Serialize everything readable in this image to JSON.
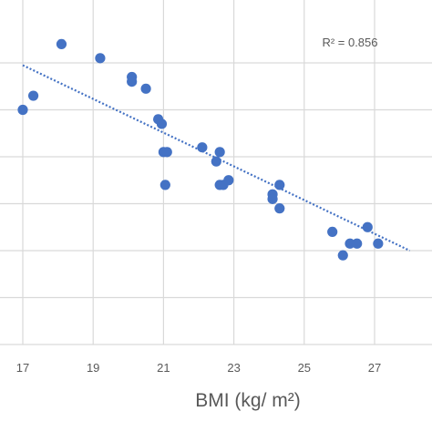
{
  "chart_data": {
    "type": "scatter",
    "title": "",
    "xlabel": "BMI (kg/ m²)",
    "ylabel": "",
    "xlim": [
      16,
      28
    ],
    "ylim": [
      0,
      7.2
    ],
    "x_ticks": [
      17,
      19,
      21,
      23,
      25,
      27
    ],
    "grid": true,
    "colors": {
      "points": "#4472c4",
      "trendline": "#4472c4",
      "grid": "#d9d9d9",
      "text": "#595959"
    },
    "series": [
      {
        "x": [
          17.0,
          17.3,
          18.1,
          19.2,
          20.1,
          20.1,
          20.5,
          20.85,
          20.95,
          21.0,
          21.1,
          21.05,
          22.1,
          22.5,
          22.6,
          22.6,
          22.7,
          22.85,
          24.1,
          24.1,
          24.3,
          24.3,
          25.8,
          26.1,
          26.3,
          26.5,
          26.8,
          27.1
        ],
        "y": [
          5.0,
          5.3,
          6.4,
          6.1,
          5.6,
          5.7,
          5.45,
          4.8,
          4.7,
          4.1,
          4.1,
          3.4,
          4.2,
          3.9,
          4.1,
          3.4,
          3.4,
          3.5,
          3.2,
          3.1,
          3.4,
          2.9,
          2.4,
          1.9,
          2.15,
          2.15,
          2.5,
          2.15
        ]
      }
    ],
    "trendline": {
      "type": "linear",
      "x_range": [
        17.0,
        28.0
      ],
      "y_at_start": 5.95,
      "y_at_end": 2.0
    },
    "annotations": [
      {
        "text": "R² = 0.856",
        "x": 26.3,
        "y": 6.45
      }
    ]
  }
}
